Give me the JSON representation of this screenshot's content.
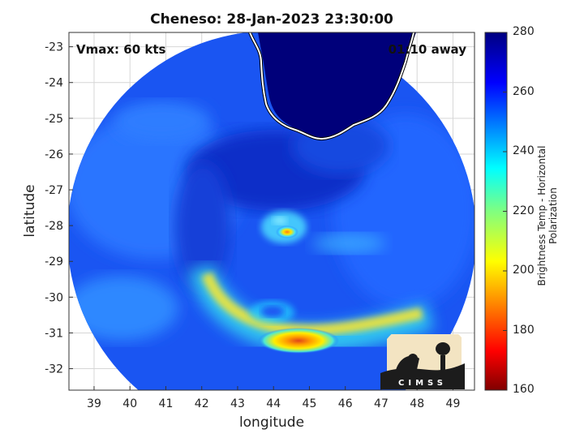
{
  "header": {
    "title": "Cheneso: 28-Jan-2023 23:30:00"
  },
  "annotations": {
    "vmax": "Vmax: 60 kts",
    "time_away": "01:10 away"
  },
  "axes": {
    "xlabel": "longitude",
    "ylabel": "latitude",
    "x_ticks": [
      "39",
      "40",
      "41",
      "42",
      "43",
      "44",
      "45",
      "46",
      "47",
      "48",
      "49"
    ],
    "y_ticks": [
      "-23",
      "-24",
      "-25",
      "-26",
      "-27",
      "-28",
      "-29",
      "-30",
      "-31",
      "-32"
    ]
  },
  "colorbar": {
    "label": "Brightness Temp - Horizontal Polarization",
    "ticks": [
      "280",
      "260",
      "240",
      "220",
      "200",
      "180",
      "160"
    ],
    "colormap": "jet",
    "range": [
      160,
      280
    ]
  },
  "map": {
    "lon_range": [
      38.3,
      49.6
    ],
    "lat_range": [
      -32.6,
      -22.6
    ],
    "coastline_color": "#ffffff",
    "land_color": "#00007a"
  },
  "logo": {
    "text": "CIMSS"
  }
}
